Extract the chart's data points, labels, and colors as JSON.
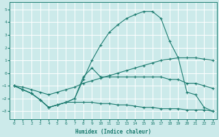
{
  "xlabel": "Humidex (Indice chaleur)",
  "bg_color": "#cceaea",
  "grid_color": "#ffffff",
  "line_color": "#1a7a6e",
  "xlim": [
    -0.5,
    23.5
  ],
  "ylim": [
    -3.6,
    5.6
  ],
  "yticks": [
    -3,
    -2,
    -1,
    0,
    1,
    2,
    3,
    4,
    5
  ],
  "xticks": [
    0,
    1,
    2,
    3,
    4,
    5,
    6,
    7,
    8,
    9,
    10,
    11,
    12,
    13,
    14,
    15,
    16,
    17,
    18,
    19,
    20,
    21,
    22,
    23
  ],
  "series": [
    {
      "x": [
        0,
        1,
        2,
        3,
        4,
        5,
        6,
        7,
        8,
        9,
        10,
        11,
        12,
        13,
        14,
        15,
        16,
        17,
        18,
        19,
        20,
        21,
        22,
        23
      ],
      "y": [
        -1.0,
        -1.3,
        -1.6,
        -2.1,
        -2.7,
        -2.5,
        -2.3,
        -2.3,
        -2.3,
        -2.3,
        -2.4,
        -2.4,
        -2.5,
        -2.5,
        -2.6,
        -2.7,
        -2.7,
        -2.8,
        -2.8,
        -2.8,
        -2.9,
        -2.9,
        -2.9,
        -3.0
      ]
    },
    {
      "x": [
        0,
        1,
        2,
        3,
        4,
        5,
        6,
        7,
        8,
        9,
        10,
        11,
        12,
        13,
        14,
        15,
        16,
        17,
        18,
        19,
        20,
        21,
        22,
        23
      ],
      "y": [
        -1.0,
        -1.3,
        -1.6,
        -2.1,
        -2.7,
        -2.5,
        -2.3,
        -2.0,
        -0.5,
        1.0,
        2.2,
        3.2,
        3.8,
        4.3,
        4.6,
        4.85,
        4.85,
        4.3,
        2.5,
        1.2,
        -1.5,
        -1.7,
        -2.7,
        -3.0
      ]
    },
    {
      "x": [
        0,
        1,
        2,
        3,
        4,
        5,
        6,
        7,
        8,
        9,
        10,
        11,
        12,
        13,
        14,
        15,
        16,
        17,
        18,
        19,
        20,
        21,
        22,
        23
      ],
      "y": [
        -1.0,
        -1.1,
        -1.3,
        -1.5,
        -1.7,
        -1.5,
        -1.3,
        -1.1,
        -0.8,
        -0.6,
        -0.4,
        -0.2,
        0.0,
        0.2,
        0.4,
        0.6,
        0.8,
        1.0,
        1.1,
        1.2,
        1.2,
        1.2,
        1.1,
        1.0
      ]
    },
    {
      "x": [
        0,
        1,
        2,
        3,
        4,
        5,
        6,
        7,
        8,
        9,
        10,
        11,
        12,
        13,
        14,
        15,
        16,
        17,
        18,
        19,
        20,
        21,
        22,
        23
      ],
      "y": [
        -1.0,
        -1.3,
        -1.6,
        -2.1,
        -2.7,
        -2.5,
        -2.3,
        -2.0,
        -0.3,
        0.4,
        -0.3,
        -0.3,
        -0.3,
        -0.3,
        -0.3,
        -0.3,
        -0.3,
        -0.3,
        -0.5,
        -0.5,
        -0.8,
        -0.8,
        -1.0,
        -1.2
      ]
    }
  ]
}
